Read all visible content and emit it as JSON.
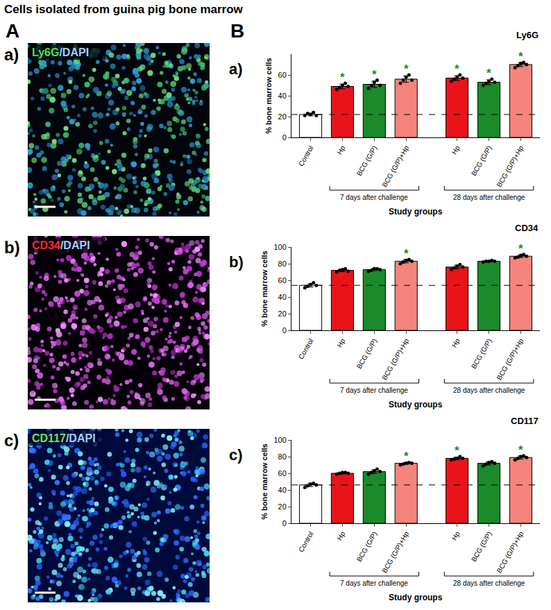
{
  "figure": {
    "title": "Cells isolated from guina pig bone marrow",
    "panel_A": {
      "letter": "A",
      "images": [
        {
          "letter": "a)",
          "stain": "Ly6G",
          "counterstain": "/DAPI",
          "color": "#4fe04f"
        },
        {
          "letter": "b)",
          "stain": "CD34",
          "counterstain": "/DAPI",
          "color": "#ff2a2a"
        },
        {
          "letter": "c)",
          "stain": "CD117",
          "counterstain": "/DAPI",
          "color": "#7fe03f"
        }
      ]
    },
    "panel_B": {
      "letter": "B"
    }
  },
  "chart_data": [
    {
      "type": "bar",
      "letter": "a)",
      "title": "Ly6G",
      "categories": [
        "Control",
        "Hp",
        "BCG (G/P)",
        "BCG (G/P)+Hp",
        "Hp",
        "BCG (G/P)",
        "BCG (G/P)+Hp"
      ],
      "values": [
        22,
        49,
        51,
        56,
        57,
        53,
        70
      ],
      "errors": [
        1.3,
        2.2,
        3,
        3,
        2.3,
        2.3,
        1.9
      ],
      "points": [
        [
          21,
          23,
          22,
          24,
          21
        ],
        [
          46,
          48,
          50,
          52,
          49
        ],
        [
          47,
          50,
          53,
          55,
          50
        ],
        [
          52,
          55,
          58,
          60,
          55
        ],
        [
          54,
          56,
          58,
          60,
          57
        ],
        [
          50,
          52,
          54,
          56,
          53
        ],
        [
          67,
          69,
          71,
          72,
          70
        ]
      ],
      "colors": [
        "#ffffff",
        "#e8141a",
        "#1a8a2a",
        "#f4847c",
        "#e8141a",
        "#1a8a2a",
        "#f4847c"
      ],
      "ylim": [
        0,
        80
      ],
      "yticks": [
        0,
        20,
        40,
        60
      ],
      "grid": false,
      "ylabel": "% bone marrow cells",
      "xlabel": "Study groups",
      "reference": 22,
      "line_style": "dash",
      "marker": "circle",
      "groups": [
        {
          "label": "7 days after challenge",
          "start": 1,
          "end": 3
        },
        {
          "label": "28 days after challenge",
          "start": 4,
          "end": 6
        }
      ],
      "annotations": [
        {
          "text": "*",
          "color": "#1a8a2a",
          "at": [
            1,
            2,
            3,
            4,
            5,
            6
          ]
        }
      ]
    },
    {
      "type": "bar",
      "letter": "b)",
      "title": "CD34",
      "categories": [
        "Control",
        "Hp",
        "BCG (G/P)",
        "BCG (G/P)+Hp",
        "Hp",
        "BCG (G/P)",
        "BCG (G/P)+Hp"
      ],
      "values": [
        54,
        72,
        73,
        83,
        76,
        83,
        89
      ],
      "errors": [
        2,
        1.6,
        1.3,
        2,
        2.3,
        0.8,
        1.6
      ],
      "points": [
        [
          51,
          53,
          55,
          57,
          54
        ],
        [
          70,
          72,
          73,
          74,
          71
        ],
        [
          71,
          72,
          74,
          74,
          73
        ],
        [
          80,
          82,
          84,
          85,
          83
        ],
        [
          73,
          75,
          77,
          79,
          76
        ],
        [
          82,
          83,
          83,
          84,
          83
        ],
        [
          87,
          88,
          90,
          91,
          89
        ]
      ],
      "colors": [
        "#ffffff",
        "#e8141a",
        "#1a8a2a",
        "#f4847c",
        "#e8141a",
        "#1a8a2a",
        "#f4847c"
      ],
      "ylim": [
        0,
        100
      ],
      "yticks": [
        0,
        20,
        40,
        60,
        80,
        100
      ],
      "grid": false,
      "ylabel": "% bone marrow cells",
      "xlabel": "Study groups",
      "reference": 54,
      "line_style": "dash",
      "marker": "circle",
      "groups": [
        {
          "label": "7 days after challenge",
          "start": 1,
          "end": 3
        },
        {
          "label": "28 days after challenge",
          "start": 4,
          "end": 6
        }
      ],
      "annotations": [
        {
          "text": "*",
          "color": "#1a8a2a",
          "at": [
            3,
            6
          ]
        }
      ]
    },
    {
      "type": "bar",
      "letter": "c)",
      "title": "CD117",
      "categories": [
        "Control",
        "Hp",
        "BCG (G/P)",
        "BCG (G/P)+Hp",
        "Hp",
        "BCG (G/P)",
        "BCG (G/P)+Hp"
      ],
      "values": [
        46,
        60,
        62,
        72,
        78,
        72,
        79
      ],
      "errors": [
        1.9,
        0.8,
        2.3,
        1.2,
        1.5,
        2,
        2
      ],
      "points": [
        [
          43,
          45,
          47,
          48,
          46
        ],
        [
          59,
          60,
          61,
          61,
          60
        ],
        [
          59,
          61,
          63,
          65,
          62
        ],
        [
          70,
          71,
          72,
          73,
          72
        ],
        [
          76,
          77,
          78,
          80,
          78
        ],
        [
          69,
          71,
          73,
          74,
          72
        ],
        [
          76,
          78,
          80,
          81,
          79
        ]
      ],
      "colors": [
        "#ffffff",
        "#e8141a",
        "#1a8a2a",
        "#f4847c",
        "#e8141a",
        "#1a8a2a",
        "#f4847c"
      ],
      "ylim": [
        0,
        100
      ],
      "yticks": [
        0,
        20,
        40,
        60,
        80,
        100
      ],
      "grid": false,
      "ylabel": "% bone marrow cells",
      "xlabel": "Study groups",
      "reference": 46,
      "line_style": "dash",
      "marker": "circle",
      "groups": [
        {
          "label": "7 days after challenge",
          "start": 1,
          "end": 3
        },
        {
          "label": "28 days after challenge",
          "start": 4,
          "end": 6
        }
      ],
      "annotations": [
        {
          "text": "*",
          "color": "#1a8a2a",
          "at": [
            3,
            4,
            6
          ]
        }
      ]
    }
  ]
}
